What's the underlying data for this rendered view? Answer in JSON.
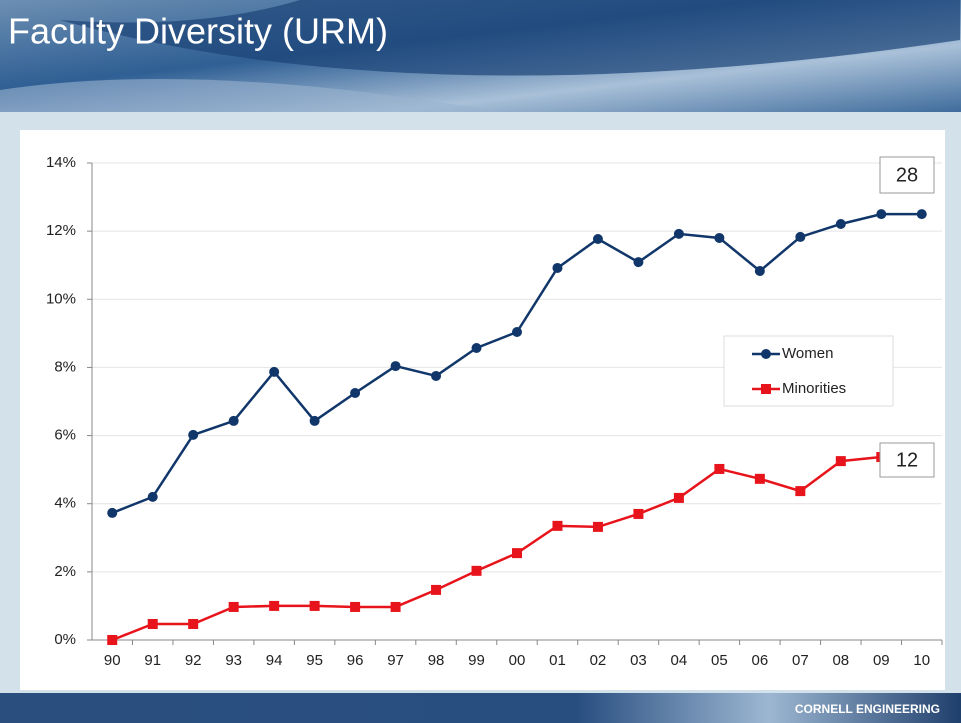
{
  "slide": {
    "title": "Faculty Diversity (URM)",
    "footer": "CORNELL ENGINEERING"
  },
  "chart_data": {
    "type": "line",
    "categories": [
      "90",
      "91",
      "92",
      "93",
      "94",
      "95",
      "96",
      "97",
      "98",
      "99",
      "00",
      "01",
      "02",
      "03",
      "04",
      "05",
      "06",
      "07",
      "08",
      "09",
      "10"
    ],
    "series": [
      {
        "name": "Women",
        "color": "#10366a",
        "marker": "circle",
        "values": [
          3.73,
          4.2,
          6.02,
          6.43,
          7.87,
          6.43,
          7.25,
          8.04,
          7.75,
          8.57,
          9.04,
          10.92,
          11.77,
          11.09,
          11.92,
          11.8,
          10.83,
          11.83,
          12.21,
          12.5,
          12.5
        ]
      },
      {
        "name": "Minorities",
        "color": "#e8141b",
        "marker": "square",
        "values": [
          0,
          0.47,
          0.47,
          0.97,
          1.0,
          1.0,
          0.97,
          0.97,
          1.47,
          2.03,
          2.55,
          3.35,
          3.32,
          3.7,
          4.17,
          5.02,
          4.73,
          4.37,
          5.25,
          5.37,
          null
        ]
      }
    ],
    "ylim": [
      0,
      14
    ],
    "yticks": [
      {
        "value": 0,
        "label": "0%"
      },
      {
        "value": 2,
        "label": "2%"
      },
      {
        "value": 4,
        "label": "4%"
      },
      {
        "value": 6,
        "label": "6%"
      },
      {
        "value": 8,
        "label": "8%"
      },
      {
        "value": 10,
        "label": "10%"
      },
      {
        "value": 12,
        "label": "12%"
      },
      {
        "value": 14,
        "label": "14%"
      }
    ],
    "grid": true,
    "legend": "right",
    "annotations": [
      "28",
      "12"
    ]
  }
}
